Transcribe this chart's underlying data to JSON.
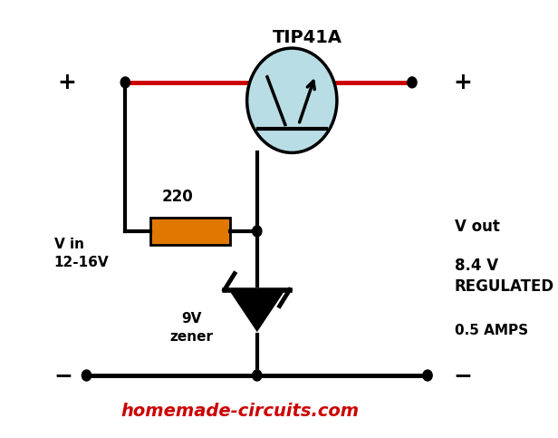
{
  "title": "TIP41A",
  "website": "homemade-circuits.com",
  "website_color": "#cc0000",
  "vin_label": "V in\n12-16V",
  "vout_label": "V out",
  "regulated_label": "8.4 V\nREGULATED",
  "amps_label": "0.5 AMPS",
  "resistor_label": "220",
  "zener_label": "9V\nzener",
  "bg_color": "#ffffff",
  "wire_color": "#000000",
  "pos_wire_color": "#cc0000",
  "transistor_fill": "#b8dde4",
  "resistor_fill": "#e07800",
  "figsize": [
    6.16,
    4.83
  ],
  "dpi": 100
}
